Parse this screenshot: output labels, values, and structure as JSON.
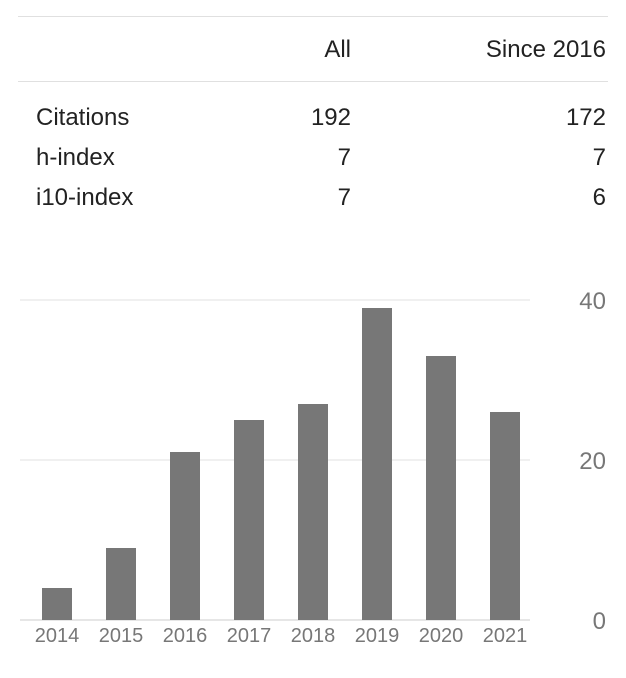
{
  "table": {
    "headers": [
      "",
      "All",
      "Since 2016"
    ],
    "rows": [
      {
        "label": "Citations",
        "all": "192",
        "since": "172"
      },
      {
        "label": "h-index",
        "all": "7",
        "since": "7"
      },
      {
        "label": "i10-index",
        "all": "7",
        "since": "6"
      }
    ]
  },
  "chart_data": {
    "type": "bar",
    "categories": [
      "2014",
      "2015",
      "2016",
      "2017",
      "2018",
      "2019",
      "2020",
      "2021"
    ],
    "values": [
      4,
      9,
      21,
      25,
      27,
      39,
      33,
      26
    ],
    "yticks": [
      "0",
      "20",
      "40"
    ],
    "ylim": [
      0,
      40
    ],
    "bar_color": "#777777",
    "grid_color": "#e0e0e0",
    "axis_color": "#cccccc",
    "grid": true
  }
}
